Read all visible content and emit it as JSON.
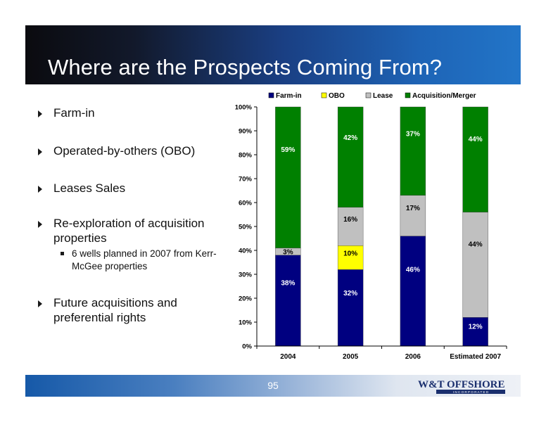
{
  "slide": {
    "title": "Where are the Prospects Coming From?",
    "page_number": "95",
    "logo_text": "W&T OFFSHORE",
    "logo_subtext": "I N C O R P O R A T E D"
  },
  "bullets": [
    {
      "text": "Farm-in"
    },
    {
      "text": "Operated-by-others (OBO)"
    },
    {
      "text": "Leases Sales"
    },
    {
      "text": "Re-exploration of acquisition properties",
      "sub": [
        "6 wells planned in 2007 from Kerr-McGee properties"
      ]
    },
    {
      "text": "Future acquisitions and preferential rights"
    }
  ],
  "colors": {
    "farm_in": "#000080",
    "obo": "#FFFF00",
    "lease": "#C0C0C0",
    "acquisition": "#008000"
  },
  "chart_data": {
    "type": "bar",
    "stacked": true,
    "percent": true,
    "categories": [
      "2004",
      "2005",
      "2006",
      "Estimated 2007"
    ],
    "series": [
      {
        "name": "Farm-in",
        "values": [
          38,
          32,
          46,
          12
        ],
        "labels": [
          "38%",
          "32%",
          "46%",
          "12%"
        ]
      },
      {
        "name": "OBO",
        "values": [
          0,
          10,
          0,
          0
        ],
        "labels": [
          "",
          "10%",
          "",
          ""
        ]
      },
      {
        "name": "Lease",
        "values": [
          3,
          16,
          17,
          44
        ],
        "labels": [
          "3%",
          "16%",
          "17%",
          "44%"
        ]
      },
      {
        "name": "Acquisition/Merger",
        "values": [
          59,
          42,
          37,
          44
        ],
        "labels": [
          "59%",
          "42%",
          "37%",
          "44%"
        ]
      }
    ],
    "ylim": [
      0,
      100
    ],
    "yticks": [
      "0%",
      "10%",
      "20%",
      "30%",
      "40%",
      "50%",
      "60%",
      "70%",
      "80%",
      "90%",
      "100%"
    ],
    "legend_position": "top",
    "grid": false
  }
}
